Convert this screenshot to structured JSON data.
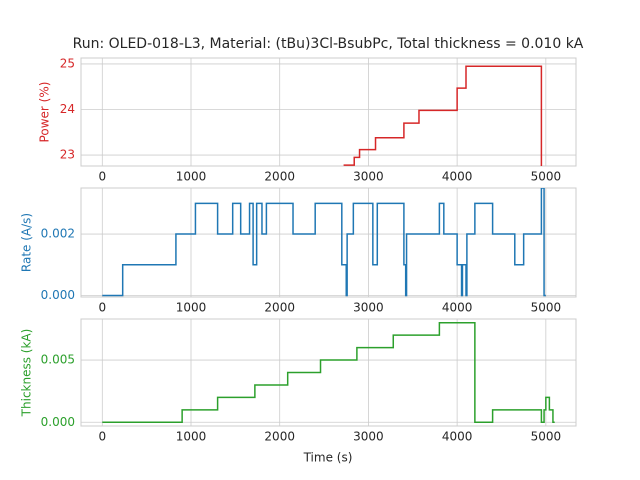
{
  "chart_data": [
    {
      "type": "line",
      "title": "Run: OLED-018-L3, Material: (tBu)3Cl-BsubPc, Total thickness = 0.010 kA",
      "ylabel": "Power (%)",
      "color": "#d62728",
      "grid": true,
      "x": [
        2720,
        2840,
        2840,
        2900,
        2900,
        3080,
        3080,
        3400,
        3400,
        3570,
        3570,
        4000,
        4000,
        4100,
        4100,
        4950,
        4950
      ],
      "values": [
        22.78,
        22.78,
        22.95,
        22.95,
        23.12,
        23.12,
        23.38,
        23.38,
        23.7,
        23.7,
        23.98,
        23.98,
        24.47,
        24.47,
        24.95,
        24.95,
        22.76
      ],
      "xlim": [
        -240,
        5340
      ],
      "xticks": [
        0,
        1000,
        2000,
        3000,
        4000,
        5000
      ],
      "ylim": [
        22.76,
        25.13
      ],
      "yticks": [
        23,
        24,
        25
      ]
    },
    {
      "type": "line",
      "ylabel": "Rate (A/s)",
      "color": "#1f77b4",
      "grid": true,
      "x": [
        0,
        230,
        230,
        830,
        830,
        1050,
        1050,
        1300,
        1300,
        1470,
        1470,
        1560,
        1560,
        1660,
        1660,
        1700,
        1700,
        1740,
        1740,
        1800,
        1800,
        1850,
        1850,
        2150,
        2150,
        2400,
        2400,
        2700,
        2700,
        2750,
        2750,
        2760,
        2760,
        2830,
        2830,
        3050,
        3050,
        3100,
        3100,
        3400,
        3400,
        3420,
        3420,
        3430,
        3430,
        3800,
        3800,
        3850,
        3850,
        4000,
        4000,
        4050,
        4050,
        4060,
        4060,
        4100,
        4100,
        4110,
        4110,
        4200,
        4200,
        4400,
        4400,
        4650,
        4650,
        4750,
        4750,
        4950,
        4950,
        4980,
        4980,
        5000
      ],
      "values": [
        0,
        0,
        0.001,
        0.001,
        0.002,
        0.002,
        0.003,
        0.003,
        0.002,
        0.002,
        0.003,
        0.003,
        0.002,
        0.002,
        0.003,
        0.003,
        0.001,
        0.001,
        0.003,
        0.003,
        0.002,
        0.002,
        0.003,
        0.003,
        0.002,
        0.002,
        0.003,
        0.003,
        0.001,
        0.001,
        0,
        0,
        0.002,
        0.002,
        0.003,
        0.003,
        0.001,
        0.001,
        0.003,
        0.003,
        0.001,
        0.001,
        0,
        0,
        0.002,
        0.002,
        0.003,
        0.003,
        0.002,
        0.002,
        0.001,
        0.001,
        0,
        0,
        0.001,
        0.001,
        0,
        0,
        0.002,
        0.002,
        0.003,
        0.003,
        0.002,
        0.002,
        0.001,
        0.001,
        0.002,
        0.002,
        0.0035,
        0.0035,
        0,
        0
      ],
      "xlim": [
        -240,
        5340
      ],
      "xticks": [
        0,
        1000,
        2000,
        3000,
        4000,
        5000
      ],
      "ylim": [
        -5e-05,
        0.0035
      ],
      "yticks": [
        {
          "value": 0,
          "label": "0.000"
        },
        0.002
      ]
    },
    {
      "type": "line",
      "ylabel": "Thickness (kA)",
      "xlabel": "Time (s)",
      "color": "#2ca02c",
      "grid": true,
      "x": [
        0,
        900,
        900,
        1300,
        1300,
        1720,
        1720,
        2090,
        2090,
        2460,
        2460,
        2870,
        2870,
        3280,
        3280,
        3800,
        3800,
        4200,
        4200,
        4400,
        4400,
        4950,
        4950,
        4980,
        4980,
        5000,
        5000,
        5040,
        5040,
        5080,
        5080,
        5100
      ],
      "values": [
        0,
        0,
        0.001,
        0.001,
        0.002,
        0.002,
        0.003,
        0.003,
        0.004,
        0.004,
        0.005,
        0.005,
        0.006,
        0.006,
        0.007,
        0.007,
        0.008,
        0.008,
        0,
        0,
        0.001,
        0.001,
        0,
        0,
        0.001,
        0.001,
        0.002,
        0.002,
        0.001,
        0.001,
        0,
        0
      ],
      "xlim": [
        -240,
        5340
      ],
      "xticks": [
        0,
        1000,
        2000,
        3000,
        4000,
        5000
      ],
      "ylim": [
        -0.0003,
        0.0083
      ],
      "yticks": [
        {
          "value": 0,
          "label": "0.000"
        },
        0.005
      ]
    }
  ]
}
